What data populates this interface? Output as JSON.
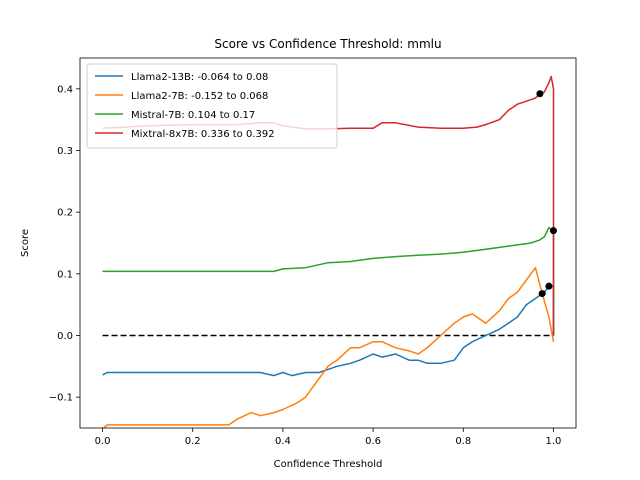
{
  "chart_data": {
    "type": "line",
    "title": "Score vs Confidence Threshold: mmlu",
    "xlabel": "Confidence Threshold",
    "ylabel": "Score",
    "xlim": [
      -0.05,
      1.05
    ],
    "ylim": [
      -0.15,
      0.45
    ],
    "xticks": [
      0.0,
      0.2,
      0.4,
      0.6,
      0.8,
      1.0
    ],
    "xtick_labels": [
      "0.0",
      "0.2",
      "0.4",
      "0.6",
      "0.8",
      "1.0"
    ],
    "yticks": [
      -0.1,
      0.0,
      0.1,
      0.2,
      0.3,
      0.4
    ],
    "ytick_labels": [
      "−0.1",
      "0.0",
      "0.1",
      "0.2",
      "0.3",
      "0.4"
    ],
    "grid": false,
    "legend_position": "top-left",
    "baseline": {
      "y": 0.0,
      "x_range": [
        0.0,
        1.0
      ],
      "color": "#000000",
      "style": "dashed"
    },
    "series": [
      {
        "name": "Llama2-13B: -0.064 to 0.08",
        "color": "#1f77b4",
        "x": [
          0.0,
          0.01,
          0.05,
          0.1,
          0.2,
          0.3,
          0.35,
          0.38,
          0.4,
          0.42,
          0.45,
          0.48,
          0.5,
          0.52,
          0.55,
          0.57,
          0.6,
          0.62,
          0.65,
          0.68,
          0.7,
          0.72,
          0.75,
          0.78,
          0.8,
          0.82,
          0.85,
          0.88,
          0.9,
          0.92,
          0.94,
          0.96,
          0.98,
          0.99,
          1.0,
          1.0
        ],
        "y": [
          -0.064,
          -0.06,
          -0.06,
          -0.06,
          -0.06,
          -0.06,
          -0.06,
          -0.065,
          -0.06,
          -0.065,
          -0.06,
          -0.06,
          -0.055,
          -0.05,
          -0.045,
          -0.04,
          -0.03,
          -0.035,
          -0.03,
          -0.04,
          -0.04,
          -0.045,
          -0.045,
          -0.04,
          -0.02,
          -0.01,
          0.0,
          0.01,
          0.02,
          0.03,
          0.05,
          0.06,
          0.07,
          0.08,
          0.08,
          0.0
        ]
      },
      {
        "name": "Llama2-7B: -0.152 to 0.068",
        "color": "#ff7f0e",
        "x": [
          0.0,
          0.01,
          0.05,
          0.1,
          0.2,
          0.28,
          0.3,
          0.33,
          0.35,
          0.38,
          0.4,
          0.43,
          0.45,
          0.48,
          0.5,
          0.52,
          0.55,
          0.57,
          0.6,
          0.62,
          0.65,
          0.68,
          0.7,
          0.72,
          0.75,
          0.78,
          0.8,
          0.82,
          0.85,
          0.88,
          0.9,
          0.92,
          0.94,
          0.96,
          0.975,
          0.99,
          1.0
        ],
        "y": [
          -0.152,
          -0.145,
          -0.145,
          -0.145,
          -0.145,
          -0.145,
          -0.135,
          -0.125,
          -0.13,
          -0.125,
          -0.12,
          -0.11,
          -0.1,
          -0.07,
          -0.05,
          -0.04,
          -0.02,
          -0.02,
          -0.01,
          -0.01,
          -0.02,
          -0.025,
          -0.03,
          -0.02,
          0.0,
          0.02,
          0.03,
          0.035,
          0.02,
          0.04,
          0.06,
          0.07,
          0.09,
          0.11,
          0.068,
          0.03,
          -0.01
        ]
      },
      {
        "name": "Mistral-7B: 0.104 to 0.17",
        "color": "#2ca02c",
        "x": [
          0.0,
          0.05,
          0.1,
          0.2,
          0.3,
          0.38,
          0.4,
          0.45,
          0.5,
          0.55,
          0.6,
          0.65,
          0.7,
          0.75,
          0.8,
          0.85,
          0.9,
          0.93,
          0.95,
          0.97,
          0.98,
          0.99,
          1.0,
          1.0
        ],
        "y": [
          0.104,
          0.104,
          0.104,
          0.104,
          0.104,
          0.104,
          0.108,
          0.11,
          0.118,
          0.12,
          0.125,
          0.128,
          0.13,
          0.132,
          0.135,
          0.14,
          0.145,
          0.148,
          0.15,
          0.155,
          0.16,
          0.175,
          0.17,
          0.0
        ]
      },
      {
        "name": "Mixtral-8x7B: 0.336 to 0.392",
        "color": "#d62728",
        "x": [
          0.0,
          0.05,
          0.1,
          0.2,
          0.3,
          0.35,
          0.38,
          0.4,
          0.45,
          0.5,
          0.55,
          0.6,
          0.62,
          0.65,
          0.7,
          0.75,
          0.8,
          0.83,
          0.85,
          0.88,
          0.9,
          0.92,
          0.94,
          0.96,
          0.97,
          0.98,
          0.99,
          0.995,
          1.0,
          1.0
        ],
        "y": [
          0.336,
          0.338,
          0.34,
          0.342,
          0.342,
          0.345,
          0.345,
          0.34,
          0.335,
          0.335,
          0.336,
          0.336,
          0.345,
          0.345,
          0.338,
          0.336,
          0.336,
          0.338,
          0.342,
          0.35,
          0.365,
          0.375,
          0.38,
          0.385,
          0.392,
          0.395,
          0.41,
          0.42,
          0.4,
          0.0
        ]
      }
    ],
    "markers": [
      {
        "x": 0.97,
        "y": 0.392,
        "color": "#000000"
      },
      {
        "x": 0.975,
        "y": 0.068,
        "color": "#000000"
      },
      {
        "x": 0.99,
        "y": 0.08,
        "color": "#000000"
      },
      {
        "x": 1.0,
        "y": 0.17,
        "color": "#000000"
      }
    ]
  }
}
